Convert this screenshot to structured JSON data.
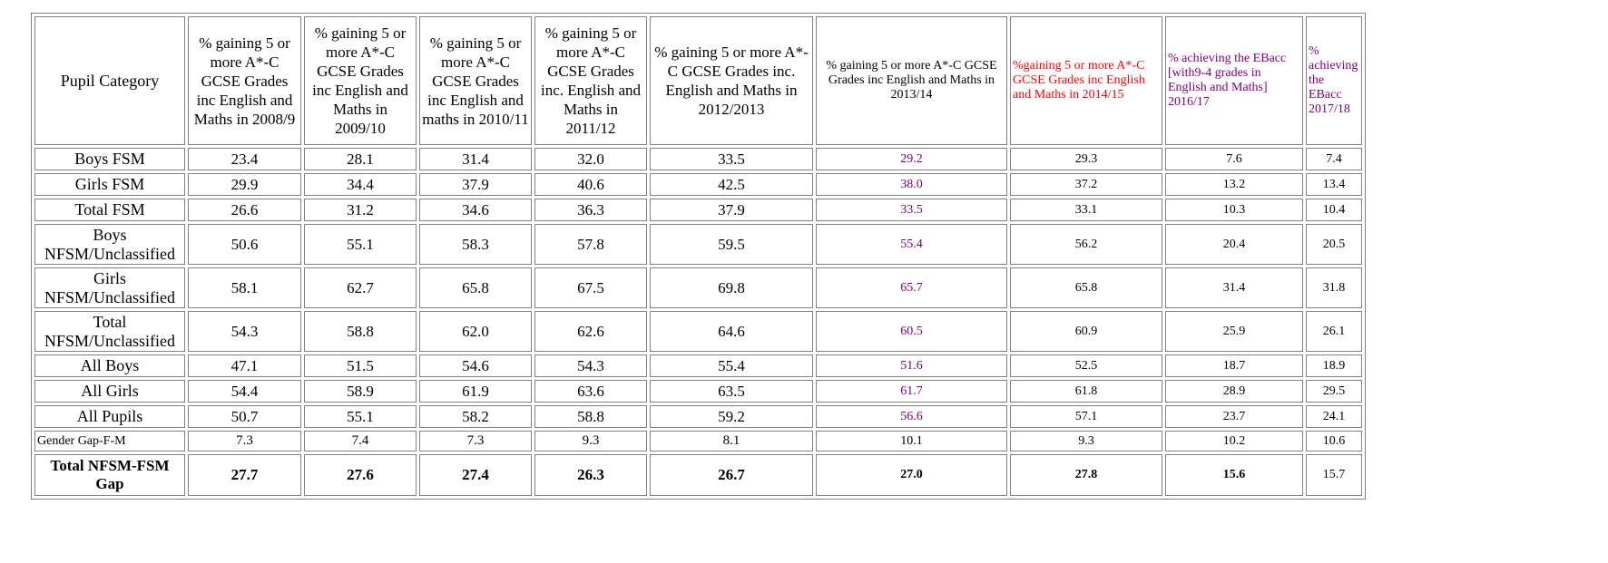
{
  "table": {
    "headers": [
      "Pupil Category",
      "% gaining 5 or more A*-C GCSE Grades inc English and Maths in 2008/9",
      "% gaining 5 or more A*-C GCSE Grades inc English and Maths in 2009/10",
      "% gaining 5 or more A*-C GCSE Grades inc English and maths in 2010/11",
      "% gaining 5 or more A*-C GCSE Grades inc. English and Maths in 2011/12",
      "% gaining 5 or more A*-C GCSE Grades inc. English and Maths in 2012/2013",
      "% gaining 5 or more A*-C GCSE Grades inc English and Maths in 2013/14",
      "%gaining 5 or more A*-C GCSE Grades inc English and Maths in 2014/15",
      "% achieving the EBacc [with9-4 grades in English and Maths] 2016/17",
      "% achieving the EBacc 2017/18"
    ],
    "rows": [
      {
        "category": "Boys FSM",
        "values": [
          "23.4",
          "28.1",
          "31.4",
          "32.0",
          "33.5",
          "29.2",
          "29.3",
          "7.6",
          "7.4"
        ]
      },
      {
        "category": "Girls  FSM",
        "values": [
          "29.9",
          "34.4",
          "37.9",
          "40.6",
          "42.5",
          "38.0",
          "37.2",
          "13.2",
          "13.4"
        ]
      },
      {
        "category": "Total FSM",
        "values": [
          "26.6",
          "31.2",
          "34.6",
          "36.3",
          "37.9",
          "33.5",
          "33.1",
          "10.3",
          "10.4"
        ]
      },
      {
        "category": "Boys NFSM/Unclassified",
        "values": [
          "50.6",
          "55.1",
          "58.3",
          "57.8",
          "59.5",
          "55.4",
          "56.2",
          "20.4",
          "20.5"
        ]
      },
      {
        "category": "Girls NFSM/Unclassified",
        "values": [
          "58.1",
          "62.7",
          "65.8",
          "67.5",
          "69.8",
          "65.7",
          "65.8",
          "31.4",
          "31.8"
        ]
      },
      {
        "category": "Total NFSM/Unclassified",
        "values": [
          "54.3",
          "58.8",
          "62.0",
          "62.6",
          "64.6",
          "60.5",
          "60.9",
          "25.9",
          "26.1"
        ]
      },
      {
        "category": "All Boys",
        "values": [
          "47.1",
          "51.5",
          "54.6",
          "54.3",
          "55.4",
          "51.6",
          "52.5",
          "18.7",
          "18.9"
        ]
      },
      {
        "category": "All Girls",
        "values": [
          "54.4",
          "58.9",
          "61.9",
          "63.6",
          "63.5",
          "61.7",
          "61.8",
          "28.9",
          "29.5"
        ]
      },
      {
        "category": "All Pupils",
        "values": [
          "50.7",
          "55.1",
          "58.2",
          "58.8",
          "59.2",
          "56.6",
          "57.1",
          "23.7",
          "24.1"
        ]
      },
      {
        "category": "Gender Gap-F-M",
        "values": [
          "7.3",
          "7.4",
          "7.3",
          "9.3",
          "8.1",
          "10.1",
          "9.3",
          "10.2",
          "10.6"
        ]
      },
      {
        "category": "Total NFSM-FSM Gap",
        "values": [
          "27.7",
          "27.6",
          "27.4",
          "26.3",
          "26.7",
          "27.0",
          "27.8",
          "15.6",
          "15.7"
        ]
      }
    ]
  },
  "colors": {
    "text": "#000000",
    "purple": "#800080",
    "red": "#ff0000",
    "border": "#808080"
  }
}
